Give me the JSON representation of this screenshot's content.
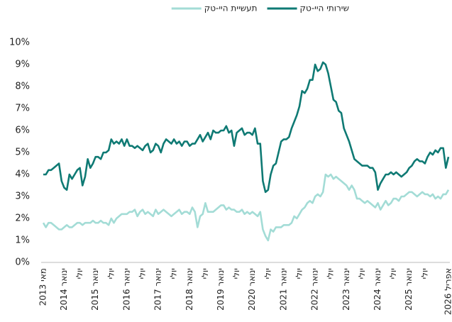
{
  "chart_data": {
    "type": "line",
    "categories": [
      "מאי 2013",
      null,
      null,
      null,
      null,
      null,
      null,
      null,
      "ינואר 2014",
      null,
      null,
      null,
      null,
      null,
      "יולי",
      null,
      null,
      null,
      null,
      null,
      "ינואר 2015",
      null,
      null,
      null,
      null,
      null,
      "יולי",
      null,
      null,
      null,
      null,
      null,
      "ינואר 2016",
      null,
      null,
      null,
      null,
      null,
      "יולי",
      null,
      null,
      null,
      null,
      null,
      "ינואר 2017",
      null,
      null,
      null,
      null,
      null,
      "יולי",
      null,
      null,
      null,
      null,
      null,
      "ינואר 2018",
      null,
      null,
      null,
      null,
      null,
      "יולי",
      null,
      null,
      null,
      null,
      null,
      "ינואר 2019",
      null,
      null,
      null,
      null,
      null,
      "יולי",
      null,
      null,
      null,
      null,
      null,
      "ינואר 2020",
      null,
      null,
      null,
      null,
      null,
      "יולי",
      null,
      null,
      null,
      null,
      null,
      "ינואר 2021",
      null,
      null,
      null,
      null,
      null,
      "יולי",
      null,
      null,
      null,
      null,
      null,
      "ינואר 2022",
      null,
      null,
      null,
      null,
      null,
      "יולי",
      null,
      null,
      null,
      null,
      null,
      "ינואר 2023",
      null,
      null,
      null,
      null,
      null,
      "יולי",
      null,
      null,
      null,
      null,
      null,
      "ינואר 2024",
      null,
      null,
      null,
      null,
      null,
      "יולי",
      null,
      null,
      null,
      null,
      null,
      "ינואר 2025",
      null,
      null,
      null,
      null,
      null,
      "יולי",
      null,
      null,
      null,
      null,
      null,
      null,
      null,
      null,
      "אפריל 2026"
    ],
    "series": [
      {
        "name": "שירותי היי-טק",
        "color": "#0f7a74",
        "values": [
          4.0,
          4.0,
          4.2,
          4.2,
          4.3,
          4.4,
          4.5,
          3.7,
          3.4,
          3.3,
          4.0,
          3.8,
          4.0,
          4.2,
          4.3,
          3.5,
          3.9,
          4.7,
          4.3,
          4.5,
          4.8,
          4.8,
          4.7,
          5.0,
          5.0,
          5.1,
          5.6,
          5.4,
          5.5,
          5.4,
          5.6,
          5.3,
          5.6,
          5.3,
          5.3,
          5.2,
          5.3,
          5.2,
          5.1,
          5.3,
          5.4,
          5.0,
          5.1,
          5.4,
          5.3,
          5.0,
          5.4,
          5.6,
          5.5,
          5.4,
          5.6,
          5.4,
          5.5,
          5.3,
          5.5,
          5.5,
          5.3,
          5.4,
          5.4,
          5.6,
          5.8,
          5.5,
          5.7,
          5.9,
          5.6,
          6.0,
          5.9,
          5.9,
          6.0,
          6.0,
          6.2,
          5.9,
          6.0,
          5.3,
          5.9,
          6.0,
          6.1,
          5.8,
          5.9,
          5.9,
          5.8,
          6.1,
          5.4,
          5.4,
          3.7,
          3.2,
          3.3,
          4.0,
          4.4,
          4.5,
          5.0,
          5.5,
          5.6,
          5.6,
          5.7,
          6.1,
          6.4,
          6.7,
          7.1,
          7.8,
          7.7,
          7.9,
          8.3,
          8.3,
          9.0,
          8.7,
          8.8,
          9.1,
          9.0,
          8.6,
          8.0,
          7.4,
          7.3,
          6.9,
          6.8,
          6.1,
          5.8,
          5.5,
          5.1,
          4.7,
          4.6,
          4.5,
          4.4,
          4.4,
          4.4,
          4.3,
          4.3,
          4.1,
          3.3,
          3.6,
          3.8,
          4.0,
          4.0,
          4.1,
          4.0,
          4.1,
          4.0,
          3.9,
          4.0,
          4.1,
          4.3,
          4.4,
          4.6,
          4.7,
          4.6,
          4.6,
          4.5,
          4.8,
          5.0,
          4.9,
          5.1,
          5.0,
          5.2,
          5.2,
          4.3,
          4.8
        ]
      },
      {
        "name": "תעשיית היי-טק",
        "color": "#a3dcd6",
        "values": [
          1.8,
          1.6,
          1.8,
          1.8,
          1.7,
          1.6,
          1.5,
          1.5,
          1.6,
          1.7,
          1.6,
          1.6,
          1.7,
          1.8,
          1.8,
          1.7,
          1.8,
          1.8,
          1.8,
          1.9,
          1.8,
          1.8,
          1.9,
          1.8,
          1.8,
          1.7,
          2.0,
          1.8,
          2.0,
          2.1,
          2.2,
          2.2,
          2.2,
          2.3,
          2.3,
          2.4,
          2.1,
          2.3,
          2.4,
          2.2,
          2.3,
          2.2,
          2.1,
          2.4,
          2.2,
          2.3,
          2.4,
          2.3,
          2.2,
          2.1,
          2.2,
          2.3,
          2.4,
          2.2,
          2.3,
          2.3,
          2.2,
          2.5,
          2.3,
          1.6,
          2.1,
          2.2,
          2.7,
          2.3,
          2.3,
          2.3,
          2.4,
          2.5,
          2.6,
          2.6,
          2.4,
          2.5,
          2.4,
          2.4,
          2.3,
          2.3,
          2.4,
          2.2,
          2.3,
          2.2,
          2.3,
          2.2,
          2.1,
          2.3,
          1.5,
          1.2,
          1.0,
          1.5,
          1.4,
          1.6,
          1.6,
          1.6,
          1.7,
          1.7,
          1.7,
          1.8,
          2.1,
          2.0,
          2.2,
          2.4,
          2.5,
          2.7,
          2.8,
          2.7,
          3.0,
          3.1,
          3.0,
          3.2,
          4.0,
          3.9,
          4.0,
          3.8,
          3.9,
          3.8,
          3.7,
          3.6,
          3.5,
          3.3,
          3.5,
          3.3,
          2.9,
          2.9,
          2.8,
          2.7,
          2.8,
          2.7,
          2.6,
          2.5,
          2.7,
          2.4,
          2.6,
          2.8,
          2.6,
          2.7,
          2.9,
          2.9,
          2.8,
          3.0,
          3.0,
          3.1,
          3.2,
          3.2,
          3.1,
          3.0,
          3.1,
          3.2,
          3.1,
          3.1,
          3.0,
          3.1,
          2.9,
          3.0,
          2.9,
          3.1,
          3.1,
          3.3
        ]
      }
    ],
    "ylim": [
      0,
      10
    ],
    "yticks": [
      {
        "value": 0,
        "label": "0%"
      },
      {
        "value": 1,
        "label": "1%"
      },
      {
        "value": 2,
        "label": "2%"
      },
      {
        "value": 3,
        "label": "3%"
      },
      {
        "value": 4,
        "label": "4%"
      },
      {
        "value": 5,
        "label": "5%"
      },
      {
        "value": 6,
        "label": "6%"
      },
      {
        "value": 7,
        "label": "7%"
      },
      {
        "value": 8,
        "label": "8%"
      },
      {
        "value": 9,
        "label": "9%"
      },
      {
        "value": 10,
        "label": "10%"
      }
    ],
    "grid": false
  }
}
